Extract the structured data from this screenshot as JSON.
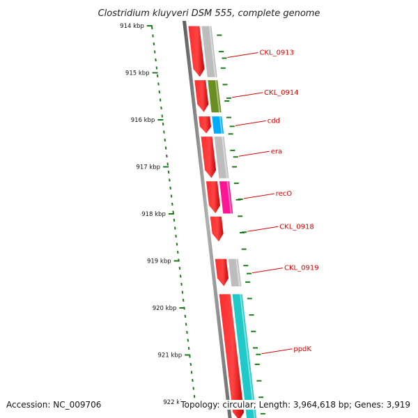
{
  "title": "Clostridium kluyveri DSM 555, complete genome",
  "footer": {
    "accession": "Accession: NC_009706",
    "topology": "Topology: circular; Length: 3,964,618 bp; Genes: 3,919"
  },
  "colors": {
    "gc_tick": "#1a7a1a",
    "backbone": "#888888",
    "cds": "#ff0000",
    "label": "#d40000"
  },
  "ticks": [
    {
      "label": "914 kbp",
      "kbp": 914
    },
    {
      "label": "915 kbp",
      "kbp": 915
    },
    {
      "label": "916 kbp",
      "kbp": 916
    },
    {
      "label": "917 kbp",
      "kbp": 917
    },
    {
      "label": "918 kbp",
      "kbp": 918
    },
    {
      "label": "919 kbp",
      "kbp": 919
    },
    {
      "label": "920 kbp",
      "kbp": 920
    },
    {
      "label": "921 kbp",
      "kbp": 921
    },
    {
      "label": "922 kbp",
      "kbp": 922
    }
  ],
  "genes": [
    {
      "name": "CKL_0913",
      "start_kbp": 914.0,
      "end_kbp": 915.1,
      "color": "#bdbdbd",
      "label_kbp": 914.6
    },
    {
      "name": "CKL_0914",
      "start_kbp": 915.15,
      "end_kbp": 915.85,
      "color": "#6b8e23",
      "label_kbp": 915.45
    },
    {
      "name": "cdd",
      "start_kbp": 915.92,
      "end_kbp": 916.3,
      "color": "#00aaff",
      "label_kbp": 916.05
    },
    {
      "name": "era",
      "start_kbp": 916.35,
      "end_kbp": 917.25,
      "color": "#bdbdbd",
      "label_kbp": 916.7
    },
    {
      "name": "recO",
      "start_kbp": 917.3,
      "end_kbp": 918.0,
      "color": "#ff1493",
      "label_kbp": 917.6
    },
    {
      "name": "CKL_0918",
      "start_kbp": 918.05,
      "end_kbp": 918.6,
      "color": null,
      "label_kbp": 918.3
    },
    {
      "name": "CKL_0919",
      "start_kbp": 918.95,
      "end_kbp": 919.55,
      "color": "#bdbdbd",
      "label_kbp": 919.18
    },
    {
      "name": "ppdK",
      "start_kbp": 919.7,
      "end_kbp": 922.4,
      "color": "#20c8c8",
      "label_kbp": 920.9
    }
  ]
}
